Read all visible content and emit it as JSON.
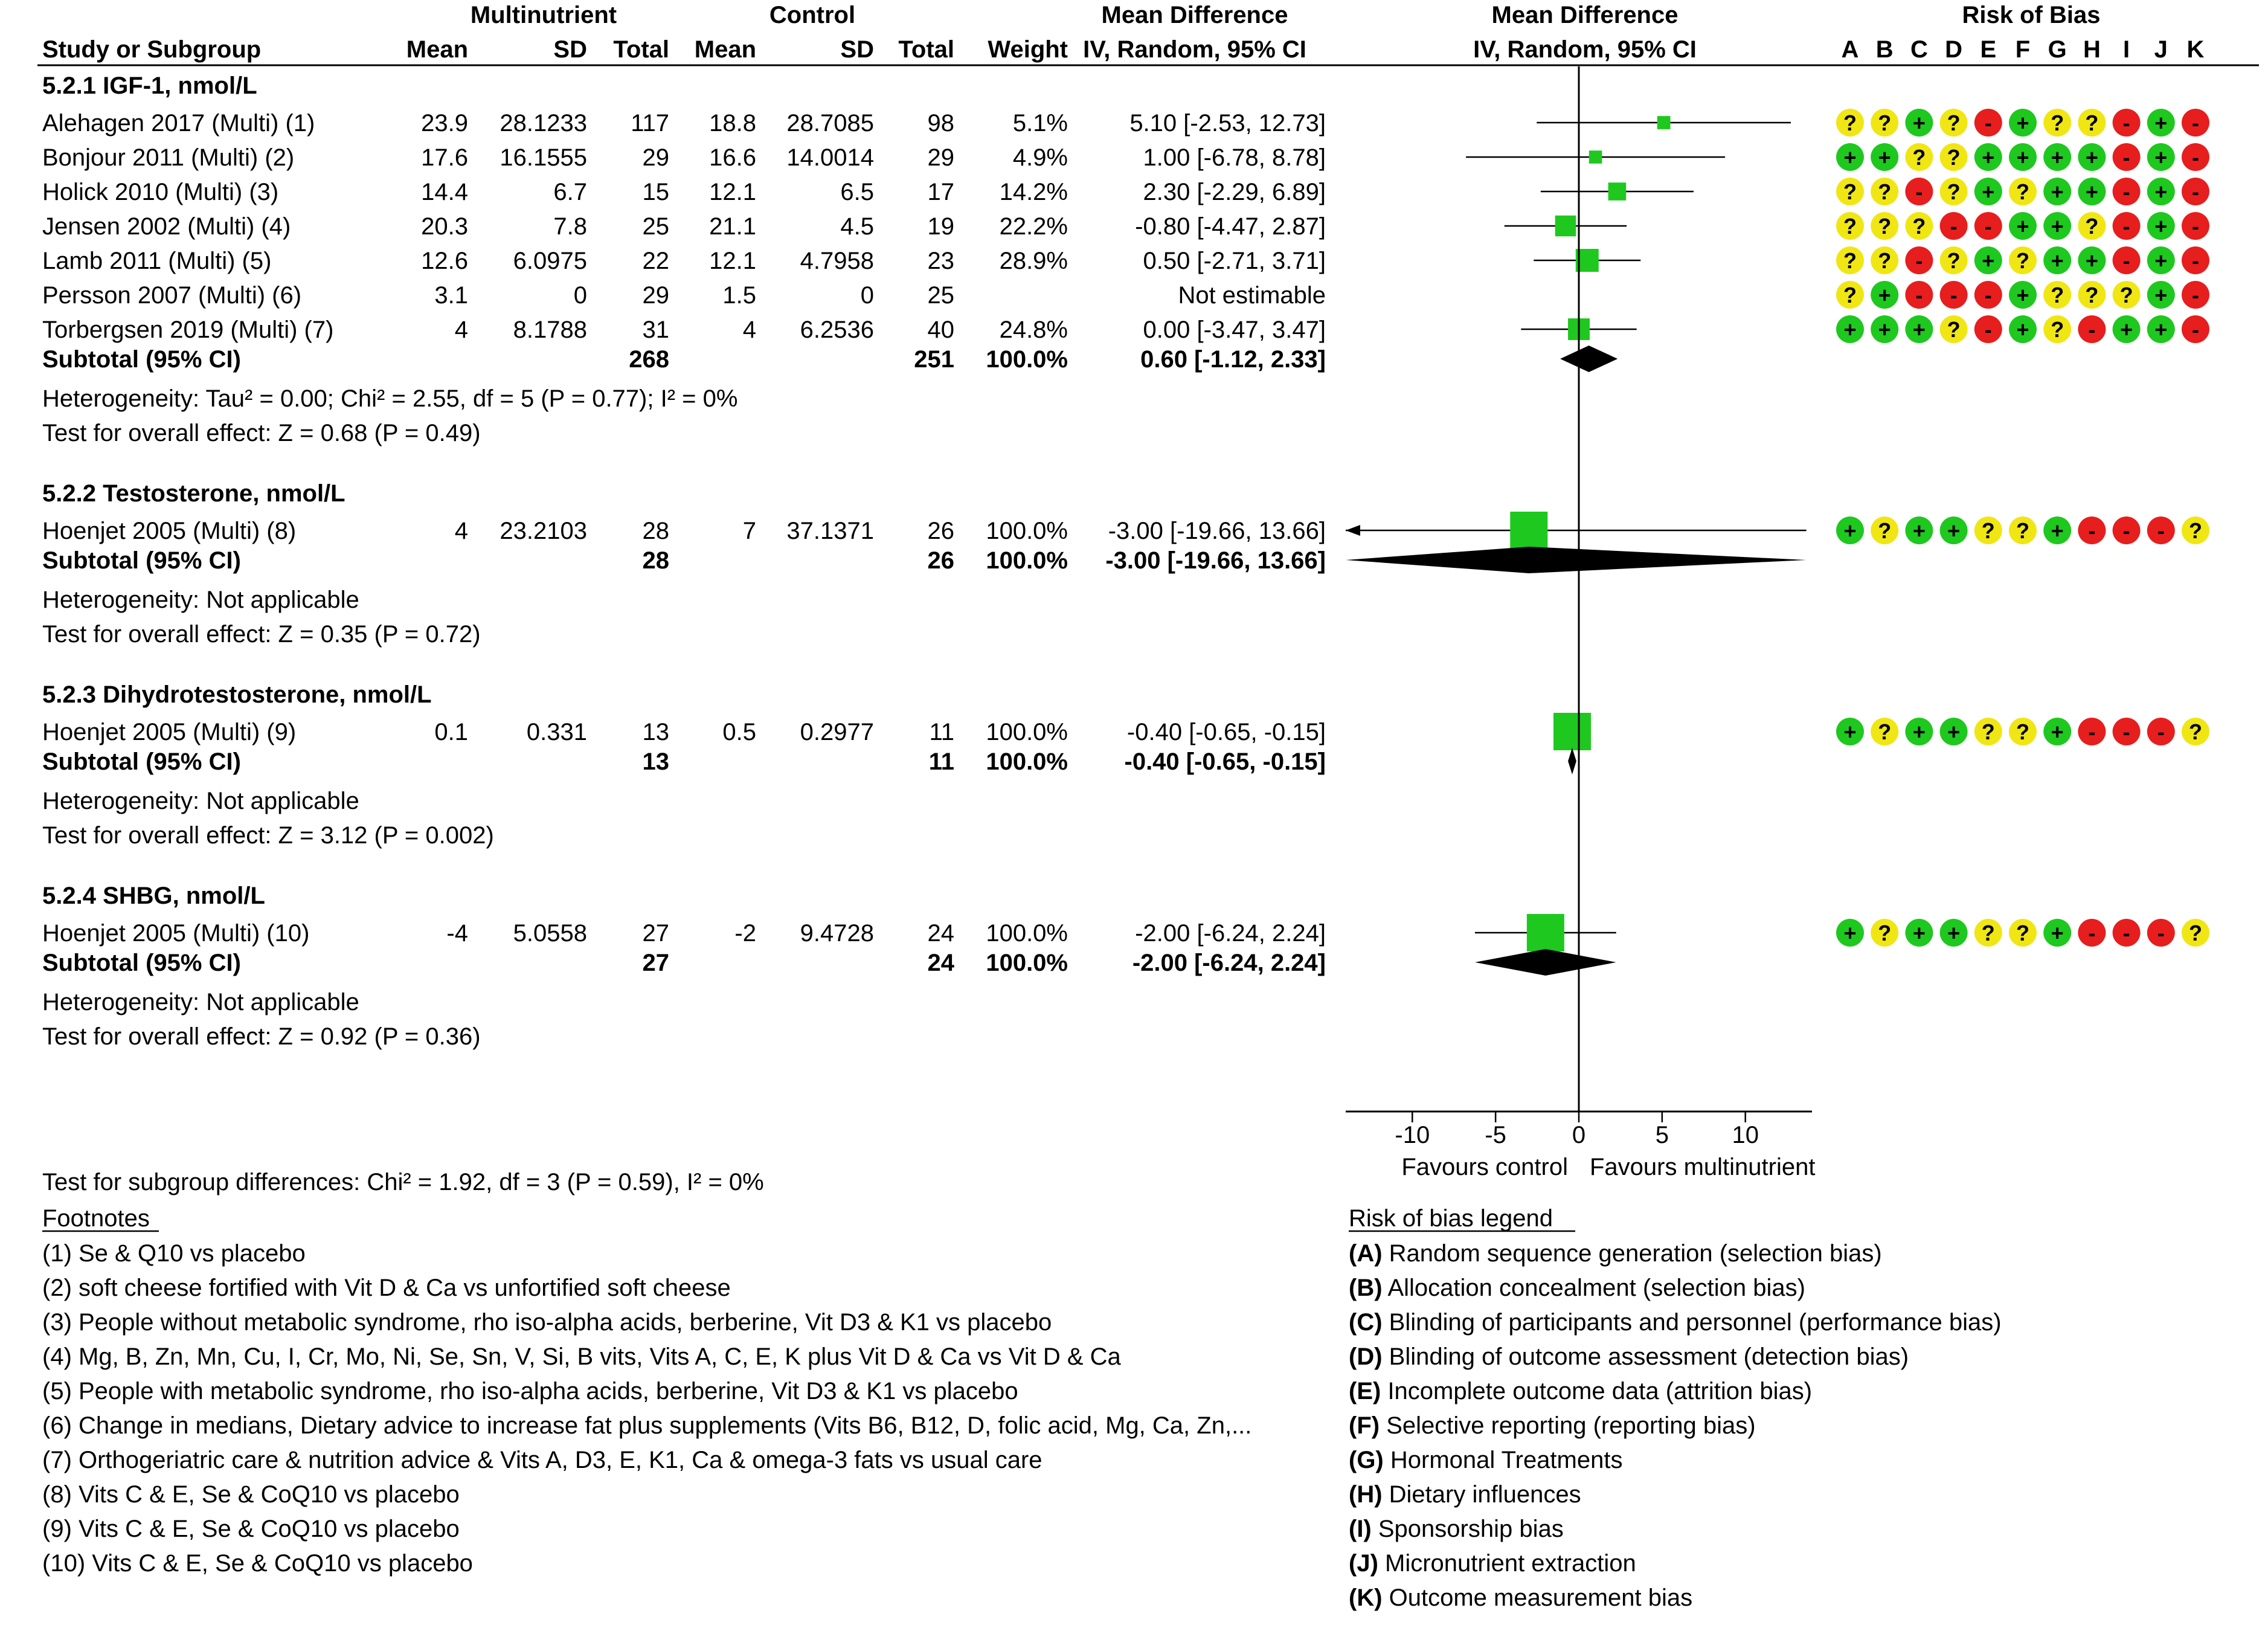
{
  "header": {
    "study": "Study or Subgroup",
    "group1": "Multinutrient",
    "group2": "Control",
    "mean": "Mean",
    "sd": "SD",
    "total": "Total",
    "weight": "Weight",
    "md_title": "Mean Difference",
    "md_method": "IV, Random, 95% CI",
    "plot_title": "Mean Difference",
    "plot_method": "IV, Random, 95% CI",
    "rob_title": "Risk of Bias",
    "rob_letters": [
      "A",
      "B",
      "C",
      "D",
      "E",
      "F",
      "G",
      "H",
      "I",
      "J",
      "K"
    ]
  },
  "chart_data": {
    "type": "forest",
    "xlim": [
      -14,
      14
    ],
    "ticks": [
      -10,
      -5,
      0,
      5,
      10
    ],
    "tick_labels": [
      "-10",
      "-5",
      "0",
      "5",
      "10"
    ],
    "favours_left": "Favours control",
    "favours_right": "Favours multinutrient",
    "subgroups": [
      {
        "title": "5.2.1 IGF-1, nmol/L",
        "studies": [
          {
            "name": "Alehagen 2017 (Multi) (1)",
            "m1": "23.9",
            "sd1": "28.1233",
            "n1": "117",
            "m2": "18.8",
            "sd2": "28.7085",
            "n2": "98",
            "weight": "5.1%",
            "ci_text": "5.10 [-2.53, 12.73]",
            "est": 5.1,
            "lo": -2.53,
            "hi": 12.73,
            "w": 5.1,
            "rob": [
              "?",
              "?",
              "+",
              "?",
              "-",
              "+",
              "?",
              "?",
              "-",
              "+",
              "-"
            ]
          },
          {
            "name": "Bonjour 2011 (Multi) (2)",
            "m1": "17.6",
            "sd1": "16.1555",
            "n1": "29",
            "m2": "16.6",
            "sd2": "14.0014",
            "n2": "29",
            "weight": "4.9%",
            "ci_text": "1.00 [-6.78, 8.78]",
            "est": 1.0,
            "lo": -6.78,
            "hi": 8.78,
            "w": 4.9,
            "rob": [
              "+",
              "+",
              "?",
              "?",
              "+",
              "+",
              "+",
              "+",
              "-",
              "+",
              "-"
            ]
          },
          {
            "name": "Holick 2010 (Multi) (3)",
            "m1": "14.4",
            "sd1": "6.7",
            "n1": "15",
            "m2": "12.1",
            "sd2": "6.5",
            "n2": "17",
            "weight": "14.2%",
            "ci_text": "2.30 [-2.29, 6.89]",
            "est": 2.3,
            "lo": -2.29,
            "hi": 6.89,
            "w": 14.2,
            "rob": [
              "?",
              "?",
              "-",
              "?",
              "+",
              "?",
              "+",
              "+",
              "-",
              "+",
              "-"
            ]
          },
          {
            "name": "Jensen 2002 (Multi) (4)",
            "m1": "20.3",
            "sd1": "7.8",
            "n1": "25",
            "m2": "21.1",
            "sd2": "4.5",
            "n2": "19",
            "weight": "22.2%",
            "ci_text": "-0.80 [-4.47, 2.87]",
            "est": -0.8,
            "lo": -4.47,
            "hi": 2.87,
            "w": 22.2,
            "rob": [
              "?",
              "?",
              "?",
              "-",
              "-",
              "+",
              "+",
              "?",
              "-",
              "+",
              "-"
            ]
          },
          {
            "name": "Lamb 2011 (Multi) (5)",
            "m1": "12.6",
            "sd1": "6.0975",
            "n1": "22",
            "m2": "12.1",
            "sd2": "4.7958",
            "n2": "23",
            "weight": "28.9%",
            "ci_text": "0.50 [-2.71, 3.71]",
            "est": 0.5,
            "lo": -2.71,
            "hi": 3.71,
            "w": 28.9,
            "rob": [
              "?",
              "?",
              "-",
              "?",
              "+",
              "?",
              "+",
              "+",
              "-",
              "+",
              "-"
            ]
          },
          {
            "name": "Persson 2007 (Multi) (6)",
            "m1": "3.1",
            "sd1": "0",
            "n1": "29",
            "m2": "1.5",
            "sd2": "0",
            "n2": "25",
            "weight": "",
            "ci_text": "Not estimable",
            "est": null,
            "lo": null,
            "hi": null,
            "w": 0,
            "rob": [
              "?",
              "+",
              "-",
              "-",
              "-",
              "+",
              "?",
              "?",
              "?",
              "+",
              "-"
            ]
          },
          {
            "name": "Torbergsen 2019 (Multi) (7)",
            "m1": "4",
            "sd1": "8.1788",
            "n1": "31",
            "m2": "4",
            "sd2": "6.2536",
            "n2": "40",
            "weight": "24.8%",
            "ci_text": "0.00 [-3.47, 3.47]",
            "est": 0.0,
            "lo": -3.47,
            "hi": 3.47,
            "w": 24.8,
            "rob": [
              "+",
              "+",
              "+",
              "?",
              "-",
              "+",
              "?",
              "-",
              "+",
              "+",
              "-"
            ]
          }
        ],
        "subtotal": {
          "label": "Subtotal (95% CI)",
          "n1": "268",
          "n2": "251",
          "weight": "100.0%",
          "ci_text": "0.60 [-1.12, 2.33]",
          "est": 0.6,
          "lo": -1.12,
          "hi": 2.33
        },
        "heterogeneity": "Heterogeneity: Tau² = 0.00; Chi² = 2.55, df = 5 (P = 0.77); I² = 0%",
        "overall": "Test for overall effect: Z = 0.68 (P = 0.49)"
      },
      {
        "title": "5.2.2 Testosterone, nmol/L",
        "studies": [
          {
            "name": "Hoenjet 2005 (Multi) (8)",
            "m1": "4",
            "sd1": "23.2103",
            "n1": "28",
            "m2": "7",
            "sd2": "37.1371",
            "n2": "26",
            "weight": "100.0%",
            "ci_text": "-3.00 [-19.66, 13.66]",
            "est": -3.0,
            "lo": -19.66,
            "hi": 13.66,
            "w": 100,
            "rob": [
              "+",
              "?",
              "+",
              "+",
              "?",
              "?",
              "+",
              "-",
              "-",
              "-",
              "?"
            ]
          }
        ],
        "subtotal": {
          "label": "Subtotal (95% CI)",
          "n1": "28",
          "n2": "26",
          "weight": "100.0%",
          "ci_text": "-3.00 [-19.66, 13.66]",
          "est": -3.0,
          "lo": -19.66,
          "hi": 13.66
        },
        "heterogeneity": "Heterogeneity: Not applicable",
        "overall": "Test for overall effect: Z = 0.35 (P = 0.72)"
      },
      {
        "title": "5.2.3 Dihydrotestosterone, nmol/L",
        "studies": [
          {
            "name": "Hoenjet 2005 (Multi) (9)",
            "m1": "0.1",
            "sd1": "0.331",
            "n1": "13",
            "m2": "0.5",
            "sd2": "0.2977",
            "n2": "11",
            "weight": "100.0%",
            "ci_text": "-0.40 [-0.65, -0.15]",
            "est": -0.4,
            "lo": -0.65,
            "hi": -0.15,
            "w": 100,
            "rob": [
              "+",
              "?",
              "+",
              "+",
              "?",
              "?",
              "+",
              "-",
              "-",
              "-",
              "?"
            ]
          }
        ],
        "subtotal": {
          "label": "Subtotal (95% CI)",
          "n1": "13",
          "n2": "11",
          "weight": "100.0%",
          "ci_text": "-0.40 [-0.65, -0.15]",
          "est": -0.4,
          "lo": -0.65,
          "hi": -0.15
        },
        "heterogeneity": "Heterogeneity: Not applicable",
        "overall": "Test for overall effect: Z = 3.12 (P = 0.002)"
      },
      {
        "title": "5.2.4 SHBG, nmol/L",
        "studies": [
          {
            "name": "Hoenjet 2005 (Multi) (10)",
            "m1": "-4",
            "sd1": "5.0558",
            "n1": "27",
            "m2": "-2",
            "sd2": "9.4728",
            "n2": "24",
            "weight": "100.0%",
            "ci_text": "-2.00 [-6.24, 2.24]",
            "est": -2.0,
            "lo": -6.24,
            "hi": 2.24,
            "w": 100,
            "rob": [
              "+",
              "?",
              "+",
              "+",
              "?",
              "?",
              "+",
              "-",
              "-",
              "-",
              "?"
            ]
          }
        ],
        "subtotal": {
          "label": "Subtotal (95% CI)",
          "n1": "27",
          "n2": "24",
          "weight": "100.0%",
          "ci_text": "-2.00 [-6.24, 2.24]",
          "est": -2.0,
          "lo": -6.24,
          "hi": 2.24
        },
        "heterogeneity": "Heterogeneity: Not applicable",
        "overall": "Test for overall effect: Z = 0.92 (P = 0.36)"
      }
    ]
  },
  "subgroup_test": "Test for subgroup differences: Chi² = 1.92, df = 3 (P = 0.59), I² = 0%",
  "footnotes": {
    "title": "Footnotes",
    "items": [
      "(1) Se & Q10 vs placebo",
      "(2) soft cheese fortified with Vit D & Ca vs unfortified soft cheese",
      "(3) People without metabolic syndrome, rho iso-alpha acids, berberine, Vit D3 & K1 vs placebo",
      "(4) Mg, B, Zn, Mn, Cu, I, Cr, Mo, Ni, Se, Sn, V, Si, B vits, Vits A, C, E, K plus Vit D & Ca vs Vit D & Ca",
      "(5) People with metabolic syndrome, rho iso-alpha acids, berberine, Vit D3 & K1 vs placebo",
      "(6) Change in medians, Dietary advice to increase fat plus supplements (Vits B6, B12, D, folic acid, Mg, Ca, Zn,...",
      "(7) Orthogeriatric care & nutrition advice & Vits A, D3, E, K1, Ca & omega-3 fats vs usual care",
      "(8) Vits C & E, Se & CoQ10 vs placebo",
      "(9) Vits C & E, Se & CoQ10 vs placebo",
      "(10) Vits C & E, Se & CoQ10 vs placebo"
    ]
  },
  "rob_legend": {
    "title": "Risk of bias legend",
    "items": [
      {
        "letter": "(A)",
        "text": " Random sequence generation (selection bias)"
      },
      {
        "letter": "(B)",
        "text": " Allocation concealment (selection bias)"
      },
      {
        "letter": "(C)",
        "text": " Blinding of participants and personnel (performance bias)"
      },
      {
        "letter": "(D)",
        "text": " Blinding of outcome assessment (detection bias)"
      },
      {
        "letter": "(E)",
        "text": " Incomplete outcome data (attrition bias)"
      },
      {
        "letter": "(F)",
        "text": " Selective reporting (reporting bias)"
      },
      {
        "letter": "(G)",
        "text": " Hormonal Treatments"
      },
      {
        "letter": "(H)",
        "text": " Dietary influences"
      },
      {
        "letter": "(I)",
        "text": " Sponsorship bias"
      },
      {
        "letter": "(J)",
        "text": " Micronutrient extraction"
      },
      {
        "letter": "(K)",
        "text": " Outcome measurement bias"
      }
    ]
  },
  "colors": {
    "estimate": "#1ec81e",
    "low_risk": "#1ec81e",
    "unclear_risk": "#f0e614",
    "high_risk": "#e61e1e",
    "ink": "#000000"
  }
}
